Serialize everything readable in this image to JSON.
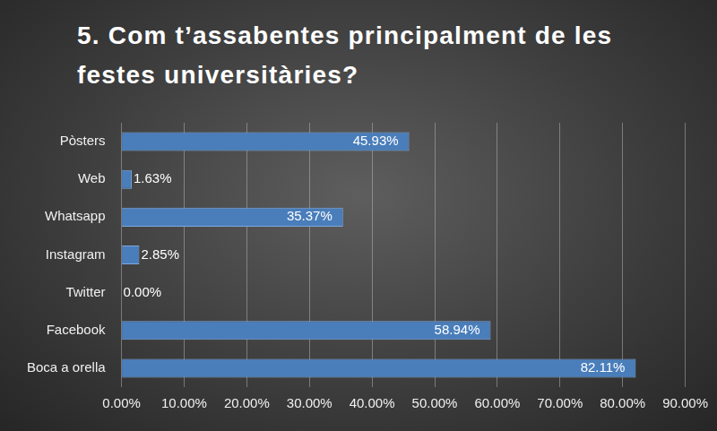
{
  "chart_data": {
    "type": "bar",
    "orientation": "horizontal",
    "title": "5. Com t’assabentes principalment de les festes universitàries?",
    "categories": [
      "Pòsters",
      "Web",
      "Whatsapp",
      "Instagram",
      "Twitter",
      "Facebook",
      "Boca a orella"
    ],
    "values": [
      45.93,
      1.63,
      35.37,
      2.85,
      0,
      58.94,
      82.11
    ],
    "value_labels": [
      "45.93%",
      "1.63%",
      "35.37%",
      "2.85%",
      "0.00%",
      "58.94%",
      "82.11%"
    ],
    "color": "#4a7ebb",
    "xlim": [
      0,
      90
    ],
    "xticks": [
      {
        "value": 0,
        "label": "0.00%"
      },
      {
        "value": 10,
        "label": "10.00%"
      },
      {
        "value": 20,
        "label": "20.00%"
      },
      {
        "value": 30,
        "label": "30.00%"
      },
      {
        "value": 40,
        "label": "40.00%"
      },
      {
        "value": 50,
        "label": "50.00%"
      },
      {
        "value": 60,
        "label": "60.00%"
      },
      {
        "value": 70,
        "label": "70.00%"
      },
      {
        "value": 80,
        "label": "80.00%"
      },
      {
        "value": 90,
        "label": "90.00%"
      }
    ],
    "grid": true,
    "data_labels": true
  }
}
